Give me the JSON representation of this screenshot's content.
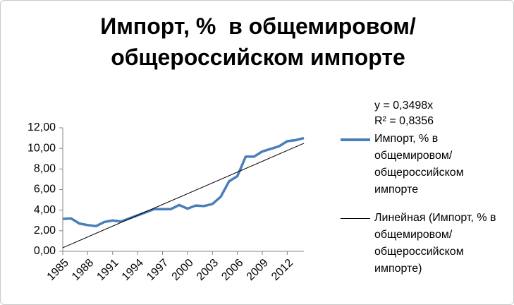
{
  "chart_data": {
    "type": "line",
    "title": "Импорт, %  в общемировом/общероссийском импорте",
    "x": [
      1985,
      1986,
      1987,
      1988,
      1989,
      1990,
      1991,
      1992,
      1993,
      1994,
      1995,
      1996,
      1997,
      1998,
      1999,
      2000,
      2001,
      2002,
      2003,
      2004,
      2005,
      2006,
      2007,
      2008,
      2009,
      2010,
      2011,
      2012,
      2013,
      2014
    ],
    "series": [
      {
        "name": "Импорт, %  в общемировом/общероссийском импорте",
        "color": "#4a7ebb",
        "values": [
          3.15,
          3.2,
          2.7,
          2.55,
          2.45,
          2.85,
          3.0,
          2.9,
          3.2,
          3.5,
          3.8,
          4.1,
          4.1,
          4.1,
          4.5,
          4.15,
          4.45,
          4.4,
          4.6,
          5.3,
          6.8,
          7.3,
          9.2,
          9.2,
          9.7,
          9.95,
          10.2,
          10.7,
          10.8,
          11.0
        ]
      }
    ],
    "trendline": {
      "name": "Линейная (Импорт, %  в общемировом/общероссийском импорте)",
      "color": "#000000",
      "slope": 0.3498,
      "equation": "y = 0,3498x",
      "r2": "R² = 0,8356"
    },
    "xlim": [
      1985,
      2014
    ],
    "xticks": [
      1985,
      1988,
      1991,
      1994,
      1997,
      2000,
      2003,
      2006,
      2009,
      2012
    ],
    "ylim": [
      0,
      12
    ],
    "yticks": [
      {
        "value": 0,
        "label": "0,00"
      },
      {
        "value": 2,
        "label": "2,00"
      },
      {
        "value": 4,
        "label": "4,00"
      },
      {
        "value": 6,
        "label": "6,00"
      },
      {
        "value": 8,
        "label": "8,00"
      },
      {
        "value": 10,
        "label": "10,00"
      },
      {
        "value": 12,
        "label": "12,00"
      }
    ],
    "grid": false
  }
}
